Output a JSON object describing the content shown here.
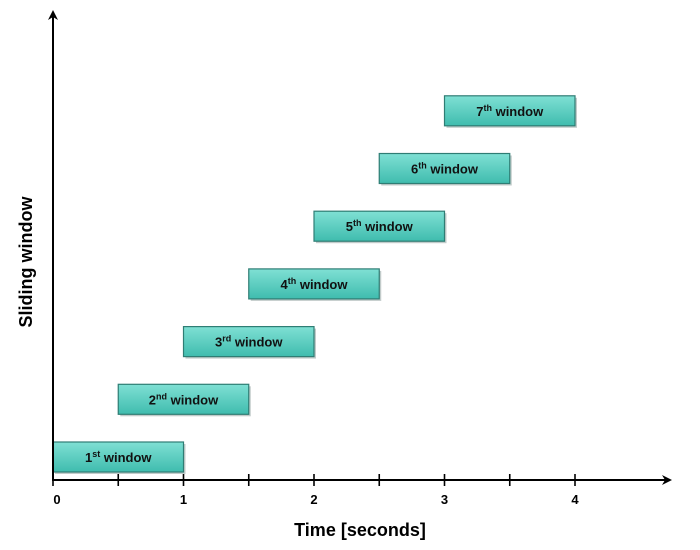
{
  "chart_data": {
    "type": "gantt",
    "xlabel": "Time [seconds]",
    "ylabel": "Sliding window",
    "xlim": [
      0,
      4.7
    ],
    "x_ticks": [
      0,
      0.5,
      1,
      1.5,
      2,
      2.5,
      3,
      3.5,
      4
    ],
    "x_tick_labels": [
      {
        "value": 0,
        "label": "0"
      },
      {
        "value": 1,
        "label": "1"
      },
      {
        "value": 2,
        "label": "2"
      },
      {
        "value": 3,
        "label": "3"
      },
      {
        "value": 4,
        "label": "4"
      }
    ],
    "windows": [
      {
        "num": "1",
        "sup": "st",
        "text": "window",
        "start": 0.0,
        "end": 1.0
      },
      {
        "num": "2",
        "sup": "nd",
        "text": "window",
        "start": 0.5,
        "end": 1.5
      },
      {
        "num": "3",
        "sup": "rd",
        "text": "window",
        "start": 1.0,
        "end": 2.0
      },
      {
        "num": "4",
        "sup": "th",
        "text": "window",
        "start": 1.5,
        "end": 2.5
      },
      {
        "num": "5",
        "sup": "th",
        "text": "window",
        "start": 2.0,
        "end": 3.0
      },
      {
        "num": "6",
        "sup": "th",
        "text": "window",
        "start": 2.5,
        "end": 3.5
      },
      {
        "num": "7",
        "sup": "th",
        "text": "window",
        "start": 3.0,
        "end": 4.0
      }
    ],
    "colors": {
      "box_fill_light": "#7fe0d4",
      "box_fill_dark": "#3fbcae",
      "box_stroke": "#2f7d74",
      "axis": "#000000"
    }
  }
}
